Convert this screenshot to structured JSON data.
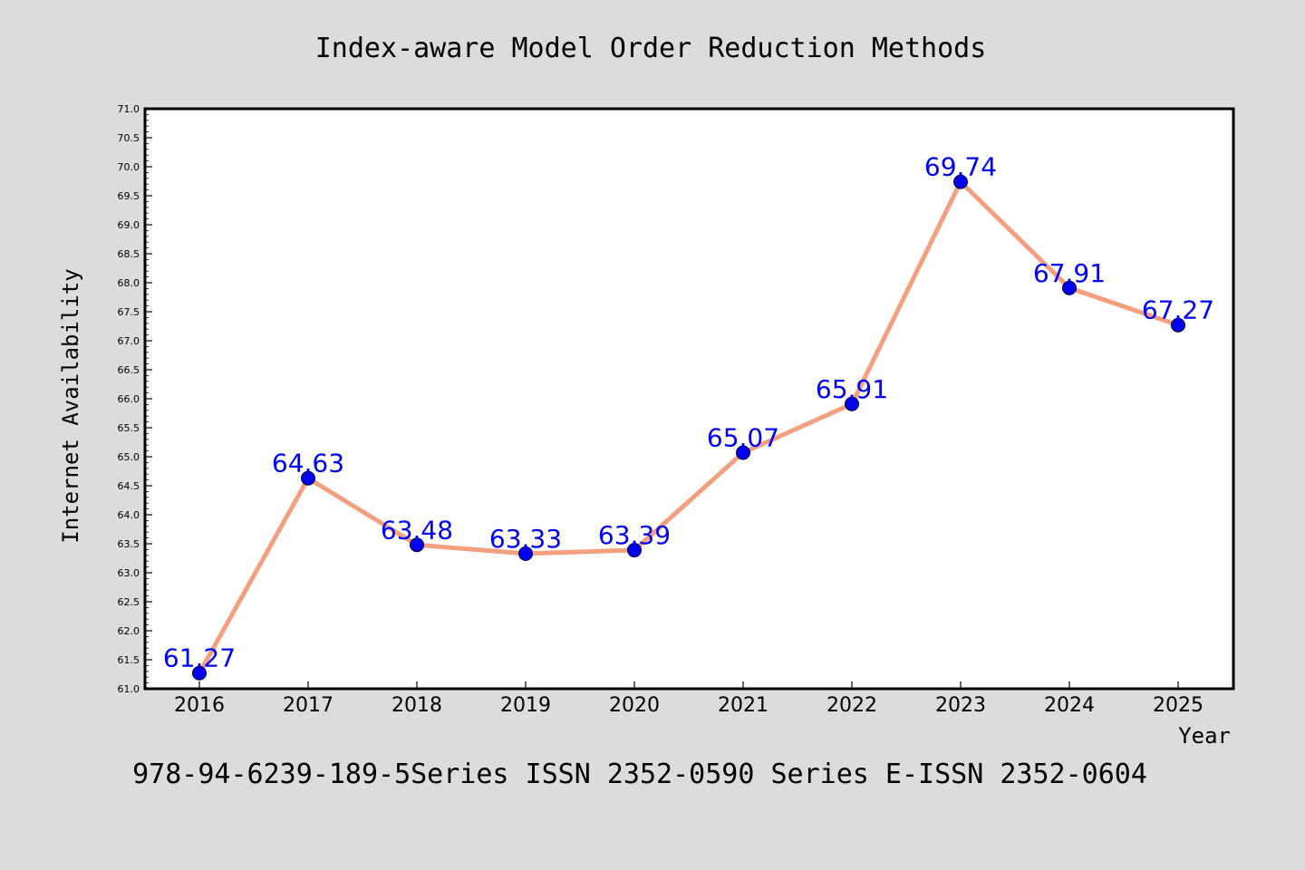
{
  "chart_data": {
    "type": "line",
    "title": "Index-aware Model Order Reduction Methods",
    "xlabel": "Year",
    "ylabel": "Internet Availability",
    "footer": "978-94-6239-189-5Series ISSN 2352-0590 Series E-ISSN 2352-0604",
    "categories": [
      "2016",
      "2017",
      "2018",
      "2019",
      "2020",
      "2021",
      "2022",
      "2023",
      "2024",
      "2025"
    ],
    "values": [
      61.27,
      64.63,
      63.48,
      63.33,
      63.39,
      65.07,
      65.91,
      69.74,
      67.91,
      67.27
    ],
    "data_labels": [
      "61.27",
      "64.63",
      "63.48",
      "63.33",
      "63.39",
      "65.07",
      "65.91",
      "69.74",
      "67.91",
      "67.27"
    ],
    "ylim": [
      61.0,
      71.0
    ],
    "y_ticks": [
      "61.0",
      "61.5",
      "62.0",
      "62.5",
      "63.0",
      "63.5",
      "64.0",
      "64.5",
      "65.0",
      "65.5",
      "66.0",
      "66.5",
      "67.0",
      "67.5",
      "68.0",
      "68.5",
      "69.0",
      "69.5",
      "70.0",
      "70.5",
      "71.0"
    ],
    "grid": false,
    "legend": "none",
    "colors": {
      "background": "#dcdcdc",
      "plot_area": "#ffffff",
      "line": "#f4a07f",
      "marker": "#0000ee",
      "data_label": "#0000ff",
      "axis": "#000000"
    }
  }
}
